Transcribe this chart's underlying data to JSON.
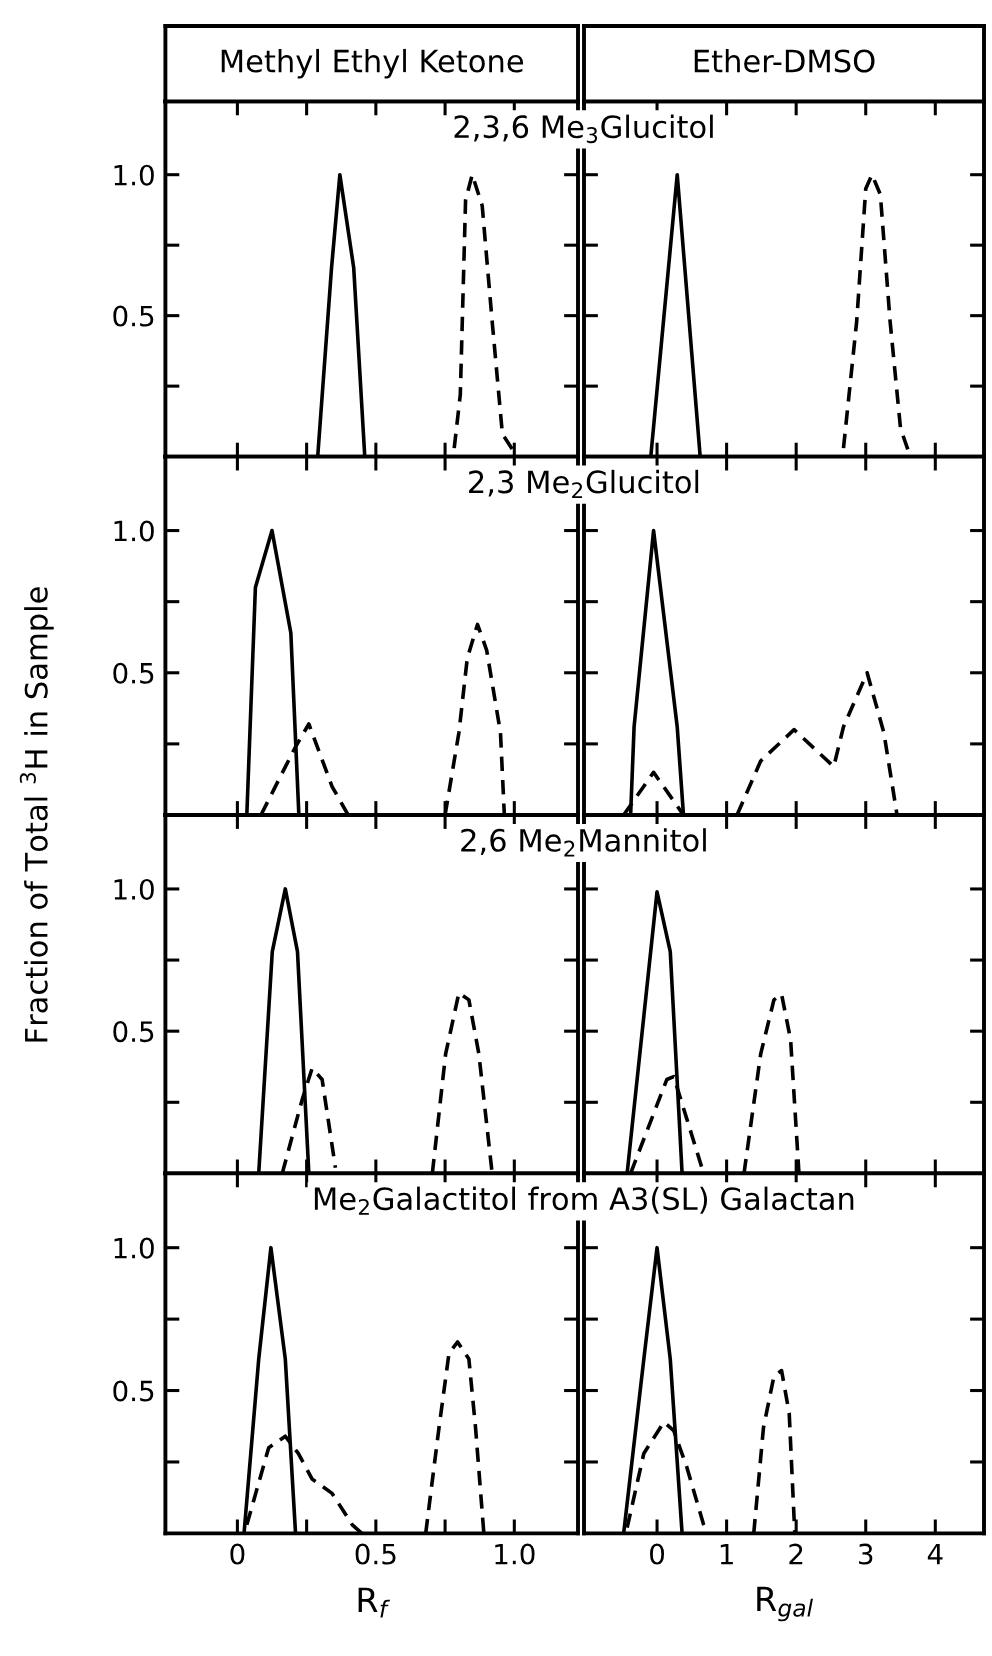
{
  "chart_data": [
    {
      "type": "line",
      "title": "Methyl Ethyl Ketone",
      "subtitle": "2,3,6 Me$_{3}$Glucitol",
      "xlim": [
        -0.26,
        1.23
      ],
      "ylim": [
        0,
        1.26
      ],
      "xticks": [
        0,
        {
          "value": 0.25,
          "label": null
        },
        0.5,
        {
          "value": 0.75,
          "label": null
        },
        1.0
      ],
      "yticks": [
        {
          "value": 0.25,
          "label": null
        },
        {
          "value": 0.5,
          "label": "0.5"
        },
        {
          "value": 0.75,
          "label": null
        },
        {
          "value": 1.0,
          "label": "1.0"
        }
      ],
      "tick_labels": "y",
      "series": [
        {
          "color": "#000000",
          "line_style": "solid",
          "x": [
            0.29,
            0.34,
            0.37,
            0.42,
            0.46
          ],
          "values": [
            0,
            0.67,
            1.0,
            0.67,
            0
          ]
        },
        {
          "color": "#000000",
          "line_style": "dashed",
          "x": [
            0.783,
            0.805,
            0.824,
            0.848,
            0.884,
            0.92,
            0.957,
            1.01
          ],
          "values": [
            0.03,
            0.22,
            0.91,
            1.0,
            0.89,
            0.48,
            0.08,
            0
          ]
        }
      ]
    },
    {
      "type": "line",
      "title": "Ether-DMSO",
      "xlim": [
        -1.05,
        4.7
      ],
      "ylim": [
        0,
        1.26
      ],
      "xticks": [
        0,
        1,
        2,
        3,
        4
      ],
      "yticks": [
        {
          "value": 0.25,
          "label": null
        },
        {
          "value": 0.5,
          "label": null
        },
        {
          "value": 0.75,
          "label": null
        },
        {
          "value": 1.0,
          "label": null
        }
      ],
      "tick_labels": false,
      "series": [
        {
          "color": "#000000",
          "line_style": "solid",
          "x": [
            -0.09,
            0.29,
            0.62
          ],
          "values": [
            0,
            1.0,
            0
          ]
        },
        {
          "color": "#000000",
          "line_style": "dashed",
          "x": [
            2.68,
            2.87,
            3.0,
            3.09,
            3.21,
            3.35,
            3.5,
            3.64
          ],
          "values": [
            0.03,
            0.48,
            0.95,
            1.0,
            0.93,
            0.48,
            0.1,
            0
          ]
        }
      ]
    },
    {
      "type": "line",
      "subtitle": "2,3 Me$_{2}$Glucitol",
      "ylabel": "Fraction of Total $^{3}$H in Sample",
      "xlim": [
        -0.26,
        1.23
      ],
      "ylim": [
        0,
        1.26
      ],
      "xticks": [
        0,
        {
          "value": 0.25,
          "label": null
        },
        0.5,
        {
          "value": 0.75,
          "label": null
        },
        1.0
      ],
      "yticks": [
        {
          "value": 0.25,
          "label": null
        },
        {
          "value": 0.5,
          "label": "0.5"
        },
        {
          "value": 0.75,
          "label": null
        },
        {
          "value": 1.0,
          "label": "1.0"
        }
      ],
      "tick_labels": "y",
      "series": [
        {
          "color": "#000000",
          "line_style": "solid",
          "x": [
            0.034,
            0.065,
            0.125,
            0.193,
            0.222
          ],
          "values": [
            0,
            0.8,
            1.0,
            0.64,
            0
          ]
        },
        {
          "color": "#000000",
          "line_style": "dashed",
          "x": [
            0.085,
            0.21,
            0.258,
            0.342,
            0.4
          ],
          "values": [
            0,
            0.24,
            0.32,
            0.1,
            0
          ]
        },
        {
          "color": "#000000",
          "line_style": "dashed",
          "x": [
            0.75,
            0.8,
            0.83,
            0.867,
            0.9,
            0.95,
            0.964
          ],
          "values": [
            0,
            0.29,
            0.55,
            0.67,
            0.58,
            0.29,
            0
          ]
        }
      ]
    },
    {
      "type": "line",
      "xlim": [
        -1.05,
        4.7
      ],
      "ylim": [
        0,
        1.26
      ],
      "xticks": [
        0,
        1,
        2,
        3,
        4
      ],
      "yticks": [
        {
          "value": 0.25,
          "label": null
        },
        {
          "value": 0.5,
          "label": null
        },
        {
          "value": 0.75,
          "label": null
        },
        {
          "value": 1.0,
          "label": null
        }
      ],
      "tick_labels": false,
      "series": [
        {
          "color": "#000000",
          "line_style": "solid",
          "x": [
            -0.38,
            -0.33,
            -0.05,
            0.29,
            0.38
          ],
          "values": [
            0,
            0.31,
            1.0,
            0.31,
            0
          ]
        },
        {
          "color": "#000000",
          "line_style": "dashed",
          "x": [
            -0.48,
            -0.05,
            0.38
          ],
          "values": [
            0,
            0.15,
            0
          ]
        },
        {
          "color": "#000000",
          "line_style": "dashed",
          "x": [
            1.15,
            1.49,
            1.97,
            2.54,
            2.68,
            3.02,
            3.26,
            3.45
          ],
          "values": [
            0,
            0.19,
            0.3,
            0.17,
            0.31,
            0.5,
            0.29,
            0
          ]
        }
      ]
    },
    {
      "type": "line",
      "subtitle": "2,6 Me$_{2}$Mannitol",
      "xlim": [
        -0.26,
        1.23
      ],
      "ylim": [
        0,
        1.26
      ],
      "xticks": [
        0,
        {
          "value": 0.25,
          "label": null
        },
        0.5,
        {
          "value": 0.75,
          "label": null
        },
        1.0
      ],
      "yticks": [
        {
          "value": 0.25,
          "label": null
        },
        {
          "value": 0.5,
          "label": "0.5"
        },
        {
          "value": 0.75,
          "label": null
        },
        {
          "value": 1.0,
          "label": "1.0"
        }
      ],
      "tick_labels": "y",
      "series": [
        {
          "color": "#000000",
          "line_style": "solid",
          "x": [
            0.077,
            0.126,
            0.173,
            0.217,
            0.258
          ],
          "values": [
            0,
            0.78,
            1.0,
            0.78,
            0
          ]
        },
        {
          "color": "#000000",
          "line_style": "dashed",
          "x": [
            0.162,
            0.234,
            0.27,
            0.306,
            0.354
          ],
          "values": [
            0,
            0.26,
            0.37,
            0.33,
            0.02
          ]
        },
        {
          "color": "#000000",
          "line_style": "dashed",
          "x": [
            0.704,
            0.752,
            0.8,
            0.836,
            0.872,
            0.92
          ],
          "values": [
            0,
            0.42,
            0.635,
            0.61,
            0.42,
            0
          ]
        }
      ]
    },
    {
      "type": "line",
      "xlim": [
        -1.05,
        4.7
      ],
      "ylim": [
        0,
        1.26
      ],
      "xticks": [
        0,
        1,
        2,
        3,
        4
      ],
      "yticks": [
        {
          "value": 0.25,
          "label": null
        },
        {
          "value": 0.5,
          "label": null
        },
        {
          "value": 0.75,
          "label": null
        },
        {
          "value": 1.0,
          "label": null
        }
      ],
      "tick_labels": false,
      "series": [
        {
          "color": "#000000",
          "line_style": "solid",
          "x": [
            -0.43,
            0.0,
            0.19,
            0.36
          ],
          "values": [
            0,
            0.99,
            0.78,
            0
          ]
        },
        {
          "color": "#000000",
          "line_style": "dashed",
          "x": [
            -0.38,
            0.14,
            0.24,
            0.43,
            0.67
          ],
          "values": [
            0,
            0.33,
            0.34,
            0.19,
            0
          ]
        },
        {
          "color": "#000000",
          "line_style": "dashed",
          "x": [
            1.25,
            1.49,
            1.68,
            1.79,
            1.92,
            2.04
          ],
          "values": [
            0,
            0.42,
            0.61,
            0.63,
            0.47,
            0
          ]
        }
      ]
    },
    {
      "type": "line",
      "subtitle": "Me$_{2}$Galactitol from A3(SL) Galactan",
      "xlabel": "R$_{f}$",
      "xlim": [
        -0.26,
        1.23
      ],
      "ylim": [
        0,
        1.26
      ],
      "xticks": [
        0,
        {
          "value": 0.25,
          "label": null
        },
        0.5,
        {
          "value": 0.75,
          "label": null
        },
        {
          "value": 1.0,
          "label": "1.0"
        }
      ],
      "yticks": [
        {
          "value": 0.25,
          "label": null
        },
        {
          "value": 0.5,
          "label": "0.5"
        },
        {
          "value": 0.75,
          "label": null
        },
        {
          "value": 1.0,
          "label": "1.0"
        }
      ],
      "series": [
        {
          "color": "#000000",
          "line_style": "solid",
          "x": [
            0.024,
            0.077,
            0.121,
            0.173,
            0.21
          ],
          "values": [
            0,
            0.61,
            1.0,
            0.61,
            0
          ]
        },
        {
          "color": "#000000",
          "line_style": "dashed",
          "x": [
            0.034,
            0.113,
            0.173,
            0.22,
            0.27,
            0.342,
            0.415,
            0.45
          ],
          "values": [
            0.03,
            0.3,
            0.34,
            0.28,
            0.19,
            0.14,
            0.03,
            0
          ]
        },
        {
          "color": "#000000",
          "line_style": "dashed",
          "x": [
            0.68,
            0.728,
            0.764,
            0.795,
            0.836,
            0.86,
            0.89
          ],
          "values": [
            0,
            0.37,
            0.63,
            0.67,
            0.61,
            0.37,
            0
          ]
        }
      ]
    },
    {
      "type": "line",
      "xlabel": "R$_{gal}$",
      "xlim": [
        -1.05,
        4.7
      ],
      "ylim": [
        0,
        1.26
      ],
      "xticks": [
        0,
        1,
        2,
        3,
        4
      ],
      "yticks": [
        {
          "value": 0.25,
          "label": null
        },
        {
          "value": 0.5,
          "label": null
        },
        {
          "value": 0.75,
          "label": null
        },
        {
          "value": 1.0,
          "label": null
        }
      ],
      "tick_labels": "x",
      "series": [
        {
          "color": "#000000",
          "line_style": "solid",
          "x": [
            -0.48,
            -0.19,
            0.0,
            0.19,
            0.36
          ],
          "values": [
            0,
            0.61,
            1.0,
            0.61,
            0
          ]
        },
        {
          "color": "#000000",
          "line_style": "dashed",
          "x": [
            -0.43,
            -0.19,
            0.1,
            0.24,
            0.43,
            0.67,
            0.72
          ],
          "values": [
            0.02,
            0.28,
            0.39,
            0.36,
            0.23,
            0.03,
            0
          ]
        },
        {
          "color": "#000000",
          "line_style": "dashed",
          "x": [
            1.39,
            1.53,
            1.68,
            1.79,
            1.9,
            1.98
          ],
          "values": [
            0,
            0.37,
            0.55,
            0.57,
            0.42,
            0
          ]
        }
      ]
    }
  ]
}
